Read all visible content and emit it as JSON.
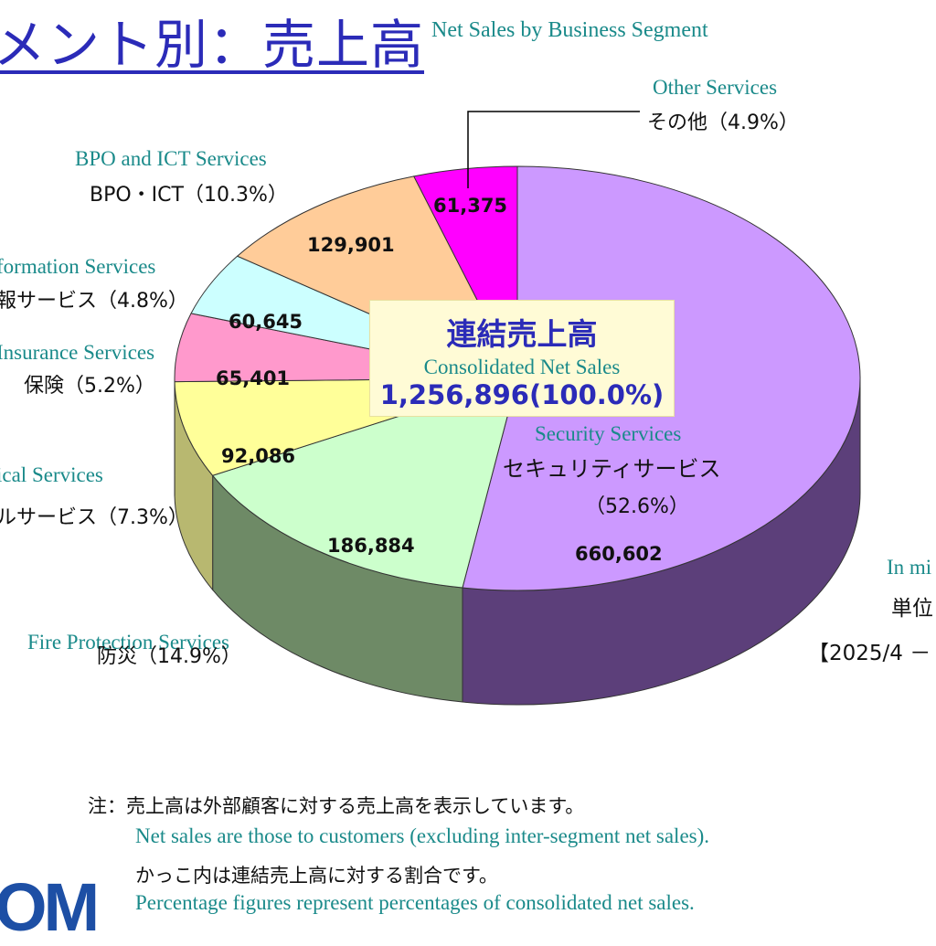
{
  "header": {
    "title_jp": "メント別：売上高",
    "title_en": "Net Sales by Business Segment"
  },
  "center": {
    "label_jp": "連結売上高",
    "label_en": "Consolidated Net Sales",
    "value": "1,256,896(100.0%)"
  },
  "unit": {
    "en": "In mi",
    "jp": "単位",
    "period": "【2025/4 －"
  },
  "notes": {
    "line1_jp": "注：売上高は外部顧客に対する売上高を表示しています。",
    "line1_en": "Net sales are those to customers (excluding inter-segment net sales).",
    "line2_jp": "かっこ内は連結売上高に対する割合です。",
    "line2_en": "Percentage figures represent percentages of consolidated net sales."
  },
  "logo": {
    "text": "OM"
  },
  "chart_data": {
    "type": "pie",
    "total": 1256896,
    "segments": [
      {
        "name_en": "Security Services",
        "name_jp": "セキュリティサービス",
        "pct": "（52.6%）",
        "value": 660602,
        "value_label": "660,602",
        "color": "#cc99ff",
        "side": "#5c3f7a"
      },
      {
        "name_en": "Fire Protection Services",
        "name_jp": "防災（14.9%）",
        "value": 186884,
        "value_label": "186,884",
        "color": "#ccffcc",
        "side": "#6e8a66"
      },
      {
        "name_en": "ical Services",
        "name_jp": "ルサービス（7.3%）",
        "value": 92086,
        "value_label": "92,086",
        "color": "#ffff99",
        "side": "#b8b870"
      },
      {
        "name_en": "Insurance Services",
        "name_jp": "保険（5.2%）",
        "value": 65401,
        "value_label": "65,401",
        "color": "#ff99cc",
        "side": "#a0607f"
      },
      {
        "name_en": "formation Services",
        "name_jp": "報サービス（4.8%）",
        "value": 60645,
        "value_label": "60,645",
        "color": "#ccffff",
        "side": "#70a0a0"
      },
      {
        "name_en": "BPO and ICT Services",
        "name_jp": "BPO・ICT（10.3%）",
        "value": 129901,
        "value_label": "129,901",
        "color": "#ffcc99",
        "side": "#a07a50"
      },
      {
        "name_en": "Other Services",
        "name_jp": "その他（4.9%）",
        "value": 61375,
        "value_label": "61,375",
        "color": "#ff00ff",
        "side": "#900090"
      }
    ]
  }
}
